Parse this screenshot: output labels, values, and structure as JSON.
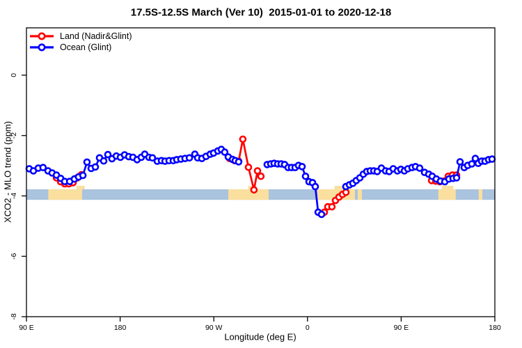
{
  "figure": {
    "title": "17.5S-12.5S March (Ver 10)  2015-01-01 to 2020-12-18",
    "x_axis_label": "Longitude (deg E)",
    "y_axis_label": "XCO2 - MLO trend (ppm)"
  },
  "legend": {
    "items": [
      {
        "label": "Land (Nadir&Glint)",
        "color": "#ff0000"
      },
      {
        "label": "Ocean (Glint)",
        "color": "#0000ff"
      }
    ]
  },
  "chart_data": {
    "type": "line",
    "title": "17.5S-12.5S March (Ver 10)  2015-01-01 to 2020-12-18",
    "xlabel": "Longitude (deg E)",
    "ylabel": "XCO2 - MLO trend (ppm)",
    "xlim": [
      90,
      540
    ],
    "ylim": [
      -8,
      1.57
    ],
    "grid": false,
    "legend_position": "top-left-inside",
    "x_ticks": [
      {
        "lon": 90,
        "label": "90 E"
      },
      {
        "lon": 180,
        "label": "180"
      },
      {
        "lon": 270,
        "label": "90 W"
      },
      {
        "lon": 360,
        "label": "0"
      },
      {
        "lon": 450,
        "label": "90 E"
      },
      {
        "lon": 540,
        "label": "180"
      }
    ],
    "y_ticks": [
      {
        "value": 0,
        "label": "0"
      },
      {
        "value": -2,
        "label": "-2"
      },
      {
        "value": -4,
        "label": "-4"
      },
      {
        "value": -6,
        "label": "-6"
      },
      {
        "value": -8,
        "label": "-8"
      }
    ],
    "map_band": {
      "description": "surface strip along the 17.5S-12.5S latitude band (ocean vs land)",
      "value_top": -3.78,
      "value_bottom": -4.13,
      "ocean_color": "#aac3de",
      "land_color": "#fadf9e",
      "land_segments_lon": [
        [
          111.0,
          143.5
        ],
        [
          283.9,
          322.7
        ],
        [
          369.5,
          405.6
        ],
        [
          408.3,
          412.3
        ],
        [
          485.7,
          502.4
        ],
        [
          524.5,
          528.0
        ]
      ],
      "relief_bumps_lon": [
        [
          138,
          146
        ],
        [
          303,
          310
        ],
        [
          386,
          402
        ],
        [
          489,
          500
        ]
      ]
    },
    "series": [
      {
        "name": "Land (Nadir&Glint)",
        "color": "#ff0000",
        "runs": [
          [
            [
              118.8,
              -3.4
            ],
            [
              122.8,
              -3.53
            ],
            [
              126.8,
              -3.6
            ],
            [
              130.8,
              -3.6
            ],
            [
              134.8,
              -3.56
            ],
            [
              138.8,
              -3.4
            ],
            [
              142.8,
              -3.3
            ]
          ],
          [
            [
              285.2,
              -2.76
            ],
            [
              289.9,
              -2.83
            ],
            [
              293.9,
              -2.85
            ],
            [
              297.9,
              -2.12
            ],
            [
              303.3,
              -3.05
            ],
            [
              308.6,
              -3.8
            ],
            [
              312.0,
              -3.17
            ],
            [
              315.3,
              -3.35
            ]
          ],
          [
            [
              376.2,
              -4.54
            ],
            [
              379.5,
              -4.36
            ],
            [
              383.5,
              -4.36
            ],
            [
              386.9,
              -4.15
            ],
            [
              390.2,
              -4.04
            ],
            [
              393.6,
              -3.95
            ],
            [
              396.9,
              -3.88
            ]
          ],
          [
            [
              479.2,
              -3.49
            ],
            [
              483.2,
              -3.51
            ],
            [
              487.2,
              -3.53
            ],
            [
              491.2,
              -3.51
            ],
            [
              495.2,
              -3.35
            ],
            [
              499.2,
              -3.31
            ],
            [
              503.2,
              -3.31
            ]
          ]
        ]
      },
      {
        "name": "Ocean (Glint)",
        "color": "#0000ff",
        "runs": [
          [
            [
              92.7,
              -3.1
            ],
            [
              96.7,
              -3.17
            ],
            [
              101.4,
              -3.08
            ],
            [
              106.0,
              -3.06
            ],
            [
              110.7,
              -3.17
            ],
            [
              114.7,
              -3.24
            ],
            [
              118.8,
              -3.31
            ],
            [
              122.8,
              -3.42
            ],
            [
              126.8,
              -3.52
            ],
            [
              131.5,
              -3.52
            ],
            [
              136.1,
              -3.44
            ],
            [
              140.1,
              -3.37
            ],
            [
              144.2,
              -3.32
            ],
            [
              148.2,
              -2.88
            ],
            [
              152.2,
              -3.09
            ],
            [
              156.2,
              -3.04
            ],
            [
              160.2,
              -2.74
            ],
            [
              164.2,
              -2.84
            ],
            [
              168.2,
              -2.63
            ],
            [
              172.2,
              -2.77
            ],
            [
              176.3,
              -2.68
            ],
            [
              180.3,
              -2.72
            ],
            [
              184.3,
              -2.64
            ],
            [
              188.3,
              -2.7
            ],
            [
              192.3,
              -2.72
            ],
            [
              196.3,
              -2.8
            ],
            [
              200.3,
              -2.72
            ],
            [
              203.7,
              -2.62
            ],
            [
              207.7,
              -2.72
            ],
            [
              211.0,
              -2.74
            ],
            [
              215.7,
              -2.85
            ],
            [
              219.7,
              -2.83
            ],
            [
              223.1,
              -2.85
            ],
            [
              227.1,
              -2.83
            ],
            [
              231.1,
              -2.83
            ],
            [
              234.4,
              -2.8
            ],
            [
              238.4,
              -2.78
            ],
            [
              242.4,
              -2.76
            ],
            [
              246.5,
              -2.74
            ],
            [
              251.8,
              -2.62
            ],
            [
              254.5,
              -2.74
            ],
            [
              258.5,
              -2.76
            ],
            [
              262.5,
              -2.69
            ],
            [
              266.5,
              -2.62
            ],
            [
              269.8,
              -2.58
            ],
            [
              273.9,
              -2.51
            ],
            [
              277.2,
              -2.46
            ],
            [
              280.5,
              -2.55
            ],
            [
              283.9,
              -2.71
            ],
            [
              287.9,
              -2.79
            ],
            [
              290.6,
              -2.83
            ],
            [
              293.9,
              -2.87
            ]
          ],
          [
            [
              321.3,
              -2.96
            ],
            [
              324.7,
              -2.94
            ],
            [
              328.0,
              -2.92
            ],
            [
              331.4,
              -2.94
            ],
            [
              334.7,
              -2.94
            ],
            [
              338.0,
              -2.96
            ],
            [
              341.4,
              -3.06
            ],
            [
              344.7,
              -3.06
            ],
            [
              348.1,
              -3.06
            ],
            [
              351.4,
              -2.99
            ],
            [
              354.8,
              -3.03
            ],
            [
              358.1,
              -3.35
            ],
            [
              361.5,
              -3.53
            ],
            [
              364.8,
              -3.56
            ],
            [
              367.5,
              -3.69
            ],
            [
              370.2,
              -4.54
            ],
            [
              373.5,
              -4.61
            ]
          ],
          [
            [
              396.9,
              -3.69
            ],
            [
              400.3,
              -3.63
            ],
            [
              403.6,
              -3.58
            ],
            [
              406.9,
              -3.49
            ],
            [
              410.3,
              -3.4
            ],
            [
              413.6,
              -3.28
            ],
            [
              417.0,
              -3.19
            ],
            [
              420.3,
              -3.17
            ],
            [
              423.7,
              -3.17
            ],
            [
              427.0,
              -3.19
            ],
            [
              431.0,
              -3.08
            ],
            [
              435.0,
              -3.17
            ],
            [
              438.4,
              -3.19
            ],
            [
              442.4,
              -3.1
            ],
            [
              446.4,
              -3.17
            ],
            [
              449.7,
              -3.12
            ],
            [
              453.1,
              -3.17
            ],
            [
              456.4,
              -3.1
            ],
            [
              460.4,
              -3.06
            ],
            [
              463.8,
              -3.03
            ],
            [
              467.8,
              -3.08
            ],
            [
              472.5,
              -3.22
            ],
            [
              476.5,
              -3.28
            ],
            [
              479.8,
              -3.35
            ],
            [
              483.8,
              -3.44
            ],
            [
              487.8,
              -3.51
            ],
            [
              491.9,
              -3.53
            ],
            [
              495.9,
              -3.44
            ],
            [
              499.9,
              -3.42
            ],
            [
              503.2,
              -3.4
            ],
            [
              506.6,
              -2.87
            ],
            [
              510.6,
              -3.06
            ],
            [
              513.9,
              -2.99
            ],
            [
              517.9,
              -2.94
            ],
            [
              521.3,
              -2.76
            ],
            [
              524.0,
              -2.92
            ],
            [
              527.3,
              -2.85
            ],
            [
              530.6,
              -2.85
            ],
            [
              534.0,
              -2.8
            ],
            [
              537.3,
              -2.78
            ]
          ]
        ]
      }
    ]
  }
}
